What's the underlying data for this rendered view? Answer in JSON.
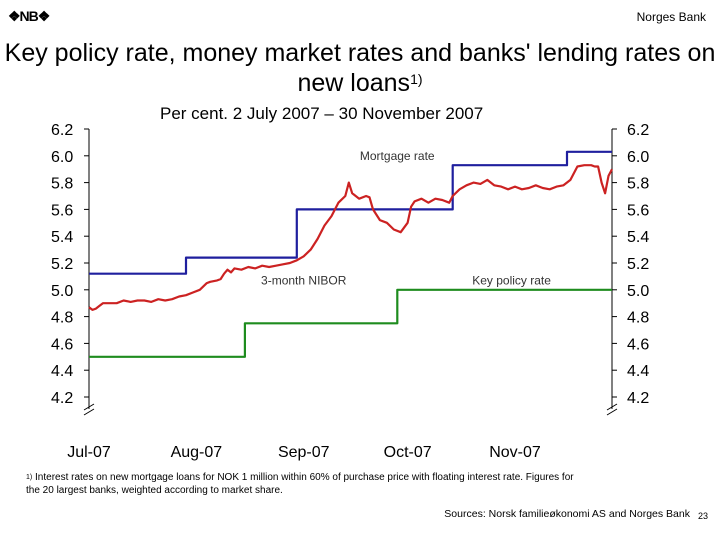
{
  "header": {
    "logo_text": "❖NB❖",
    "org_name": "Norges Bank",
    "title_main": "Key policy rate, money market rates and banks' lending rates on new loans",
    "title_sup": "1)",
    "subtitle": "Per cent. 2 July 2007 –  30 November 2007"
  },
  "footer": {
    "footnote_marker": "1)",
    "footnote_text": " Interest rates on new mortgage loans for NOK 1 million within 60% of purchase price with floating interest rate. Figures for the 20 largest banks, weighted according to market share.",
    "sources": "Sources: Norsk familieøkonomi AS and Norges Bank",
    "page_number": "23"
  },
  "chart_data": {
    "type": "line",
    "title": "Key policy rate, money market rates and banks' lending rates on new loans",
    "ylim": [
      4.2,
      6.2
    ],
    "y_ticks": [
      "6.2",
      "6.0",
      "5.8",
      "5.6",
      "5.4",
      "5.2",
      "5.0",
      "4.8",
      "4.6",
      "4.4",
      "4.2"
    ],
    "x_labels": [
      "Jul-07",
      "Aug-07",
      "Sep-07",
      "Oct-07",
      "Nov-07"
    ],
    "xlim_days": [
      0,
      151
    ],
    "x_label_days": [
      0,
      31,
      62,
      92,
      123
    ],
    "axis_break": true,
    "series": [
      {
        "name": "Mortgage rate",
        "color": "#1f1f9e",
        "step": true,
        "points": [
          [
            0,
            5.12
          ],
          [
            28,
            5.12
          ],
          [
            28,
            5.24
          ],
          [
            60,
            5.24
          ],
          [
            60,
            5.6
          ],
          [
            105,
            5.6
          ],
          [
            105,
            5.93
          ],
          [
            138,
            5.93
          ],
          [
            138,
            6.03
          ],
          [
            151,
            6.03
          ]
        ]
      },
      {
        "name": "3-month NIBOR",
        "color": "#cc2222",
        "step": false,
        "points": [
          [
            0,
            4.87
          ],
          [
            1,
            4.85
          ],
          [
            2,
            4.86
          ],
          [
            3,
            4.88
          ],
          [
            4,
            4.9
          ],
          [
            6,
            4.9
          ],
          [
            8,
            4.9
          ],
          [
            10,
            4.92
          ],
          [
            12,
            4.91
          ],
          [
            14,
            4.92
          ],
          [
            16,
            4.92
          ],
          [
            18,
            4.91
          ],
          [
            20,
            4.93
          ],
          [
            22,
            4.92
          ],
          [
            24,
            4.93
          ],
          [
            26,
            4.95
          ],
          [
            28,
            4.96
          ],
          [
            30,
            4.98
          ],
          [
            32,
            5.0
          ],
          [
            34,
            5.05
          ],
          [
            35,
            5.06
          ],
          [
            37,
            5.07
          ],
          [
            38,
            5.08
          ],
          [
            39,
            5.12
          ],
          [
            40,
            5.15
          ],
          [
            41,
            5.13
          ],
          [
            42,
            5.16
          ],
          [
            44,
            5.15
          ],
          [
            46,
            5.17
          ],
          [
            48,
            5.16
          ],
          [
            50,
            5.18
          ],
          [
            52,
            5.17
          ],
          [
            54,
            5.18
          ],
          [
            56,
            5.19
          ],
          [
            58,
            5.2
          ],
          [
            60,
            5.22
          ],
          [
            62,
            5.25
          ],
          [
            64,
            5.3
          ],
          [
            66,
            5.38
          ],
          [
            68,
            5.48
          ],
          [
            70,
            5.55
          ],
          [
            72,
            5.65
          ],
          [
            74,
            5.7
          ],
          [
            75,
            5.8
          ],
          [
            76,
            5.72
          ],
          [
            78,
            5.68
          ],
          [
            80,
            5.7
          ],
          [
            81,
            5.69
          ],
          [
            82,
            5.6
          ],
          [
            84,
            5.52
          ],
          [
            86,
            5.5
          ],
          [
            88,
            5.45
          ],
          [
            90,
            5.43
          ],
          [
            92,
            5.5
          ],
          [
            93,
            5.62
          ],
          [
            94,
            5.66
          ],
          [
            96,
            5.68
          ],
          [
            98,
            5.65
          ],
          [
            100,
            5.68
          ],
          [
            102,
            5.67
          ],
          [
            104,
            5.65
          ],
          [
            105,
            5.7
          ],
          [
            107,
            5.75
          ],
          [
            109,
            5.78
          ],
          [
            111,
            5.8
          ],
          [
            113,
            5.79
          ],
          [
            115,
            5.82
          ],
          [
            117,
            5.78
          ],
          [
            119,
            5.77
          ],
          [
            121,
            5.75
          ],
          [
            123,
            5.77
          ],
          [
            125,
            5.75
          ],
          [
            127,
            5.76
          ],
          [
            129,
            5.78
          ],
          [
            131,
            5.76
          ],
          [
            133,
            5.75
          ],
          [
            135,
            5.77
          ],
          [
            137,
            5.78
          ],
          [
            139,
            5.82
          ],
          [
            141,
            5.92
          ],
          [
            143,
            5.93
          ],
          [
            145,
            5.93
          ],
          [
            146,
            5.92
          ],
          [
            147,
            5.92
          ],
          [
            148,
            5.8
          ],
          [
            149,
            5.72
          ],
          [
            150,
            5.85
          ],
          [
            151,
            5.9
          ]
        ]
      },
      {
        "name": "Key policy rate",
        "color": "#1e8c1e",
        "step": true,
        "points": [
          [
            0,
            4.5
          ],
          [
            45,
            4.5
          ],
          [
            45,
            4.75
          ],
          [
            89,
            4.75
          ],
          [
            89,
            5.0
          ],
          [
            151,
            5.0
          ]
        ]
      }
    ],
    "annotations": [
      {
        "text": "Mortgage rate",
        "series": "Mortgage rate",
        "at_day": 89,
        "at_value": 6.0
      },
      {
        "text": "3-month NIBOR",
        "series": "3-month NIBOR",
        "at_day": 62,
        "at_value": 5.07
      },
      {
        "text": "Key policy rate",
        "series": "Key policy rate",
        "at_day": 122,
        "at_value": 5.07
      }
    ]
  }
}
